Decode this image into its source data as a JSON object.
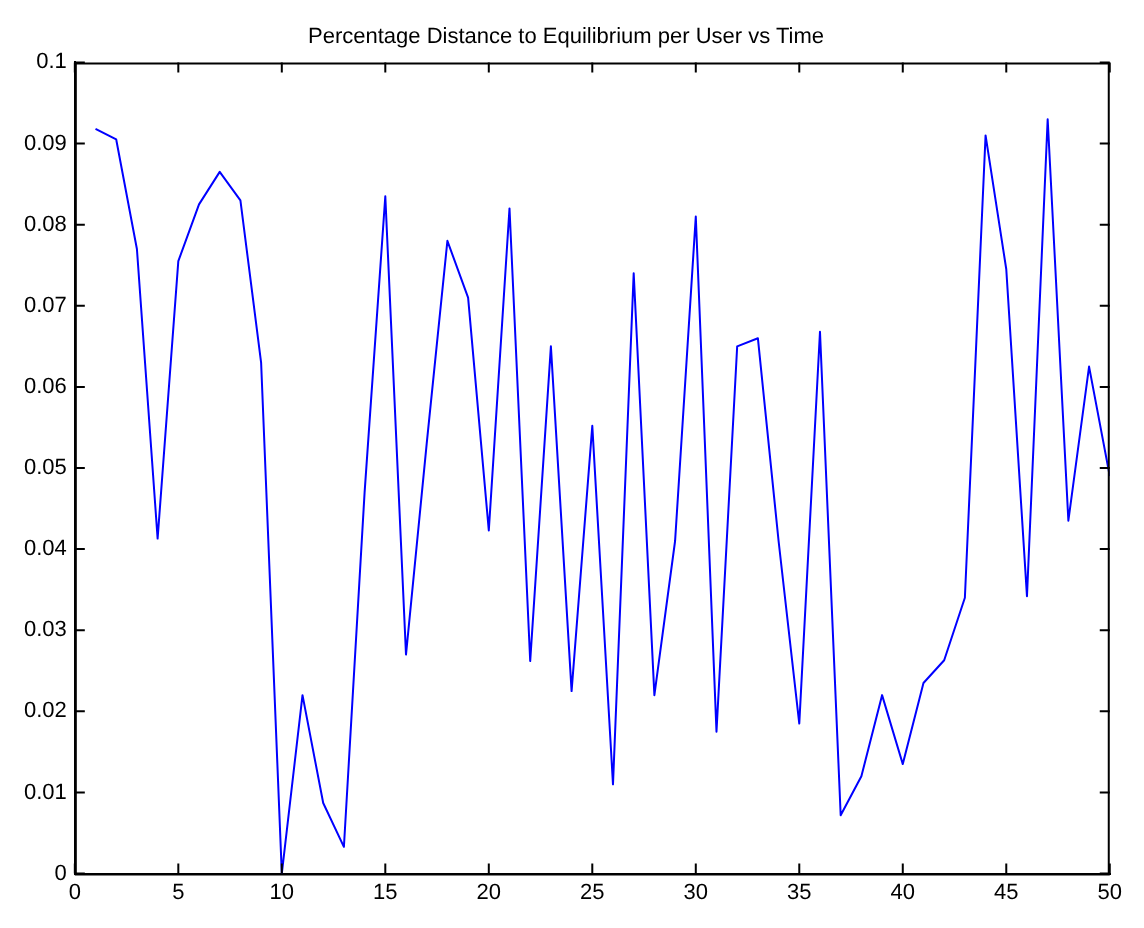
{
  "chart_data": {
    "type": "line",
    "title": "Percentage Distance to Equilibrium per User vs Time",
    "x": [
      1,
      2,
      3,
      4,
      5,
      6,
      7,
      8,
      9,
      10,
      11,
      12,
      13,
      14,
      15,
      16,
      17,
      18,
      19,
      20,
      21,
      22,
      23,
      24,
      25,
      26,
      27,
      28,
      29,
      30,
      31,
      32,
      33,
      34,
      35,
      36,
      37,
      38,
      39,
      40,
      41,
      42,
      43,
      44,
      45,
      46,
      47,
      48,
      49,
      50
    ],
    "series": [
      {
        "color": "#0000ff",
        "values": [
          0.0918,
          0.0905,
          0.077,
          0.0413,
          0.0755,
          0.0825,
          0.0865,
          0.083,
          0.063,
          0.0,
          0.022,
          0.0087,
          0.0033,
          0.047,
          0.0835,
          0.027,
          0.053,
          0.078,
          0.071,
          0.0423,
          0.082,
          0.0262,
          0.065,
          0.0225,
          0.0552,
          0.011,
          0.074,
          0.022,
          0.041,
          0.081,
          0.0175,
          0.065,
          0.066,
          0.041,
          0.0185,
          0.0668,
          0.0072,
          0.012,
          0.022,
          0.0135,
          0.0235,
          0.0263,
          0.034,
          0.091,
          0.0745,
          0.0342,
          0.093,
          0.0435,
          0.0625,
          0.049
        ]
      }
    ],
    "xlim": [
      0,
      50
    ],
    "xticks": [
      0,
      5,
      10,
      15,
      20,
      25,
      30,
      35,
      40,
      45,
      50
    ],
    "ylim": [
      0,
      0.1
    ],
    "yticks": [
      0,
      0.01,
      0.02,
      0.03,
      0.04,
      0.05,
      0.06,
      0.07,
      0.08,
      0.09,
      0.1
    ],
    "grid": false,
    "legend": false,
    "marker": "none",
    "line_style": "solid"
  }
}
